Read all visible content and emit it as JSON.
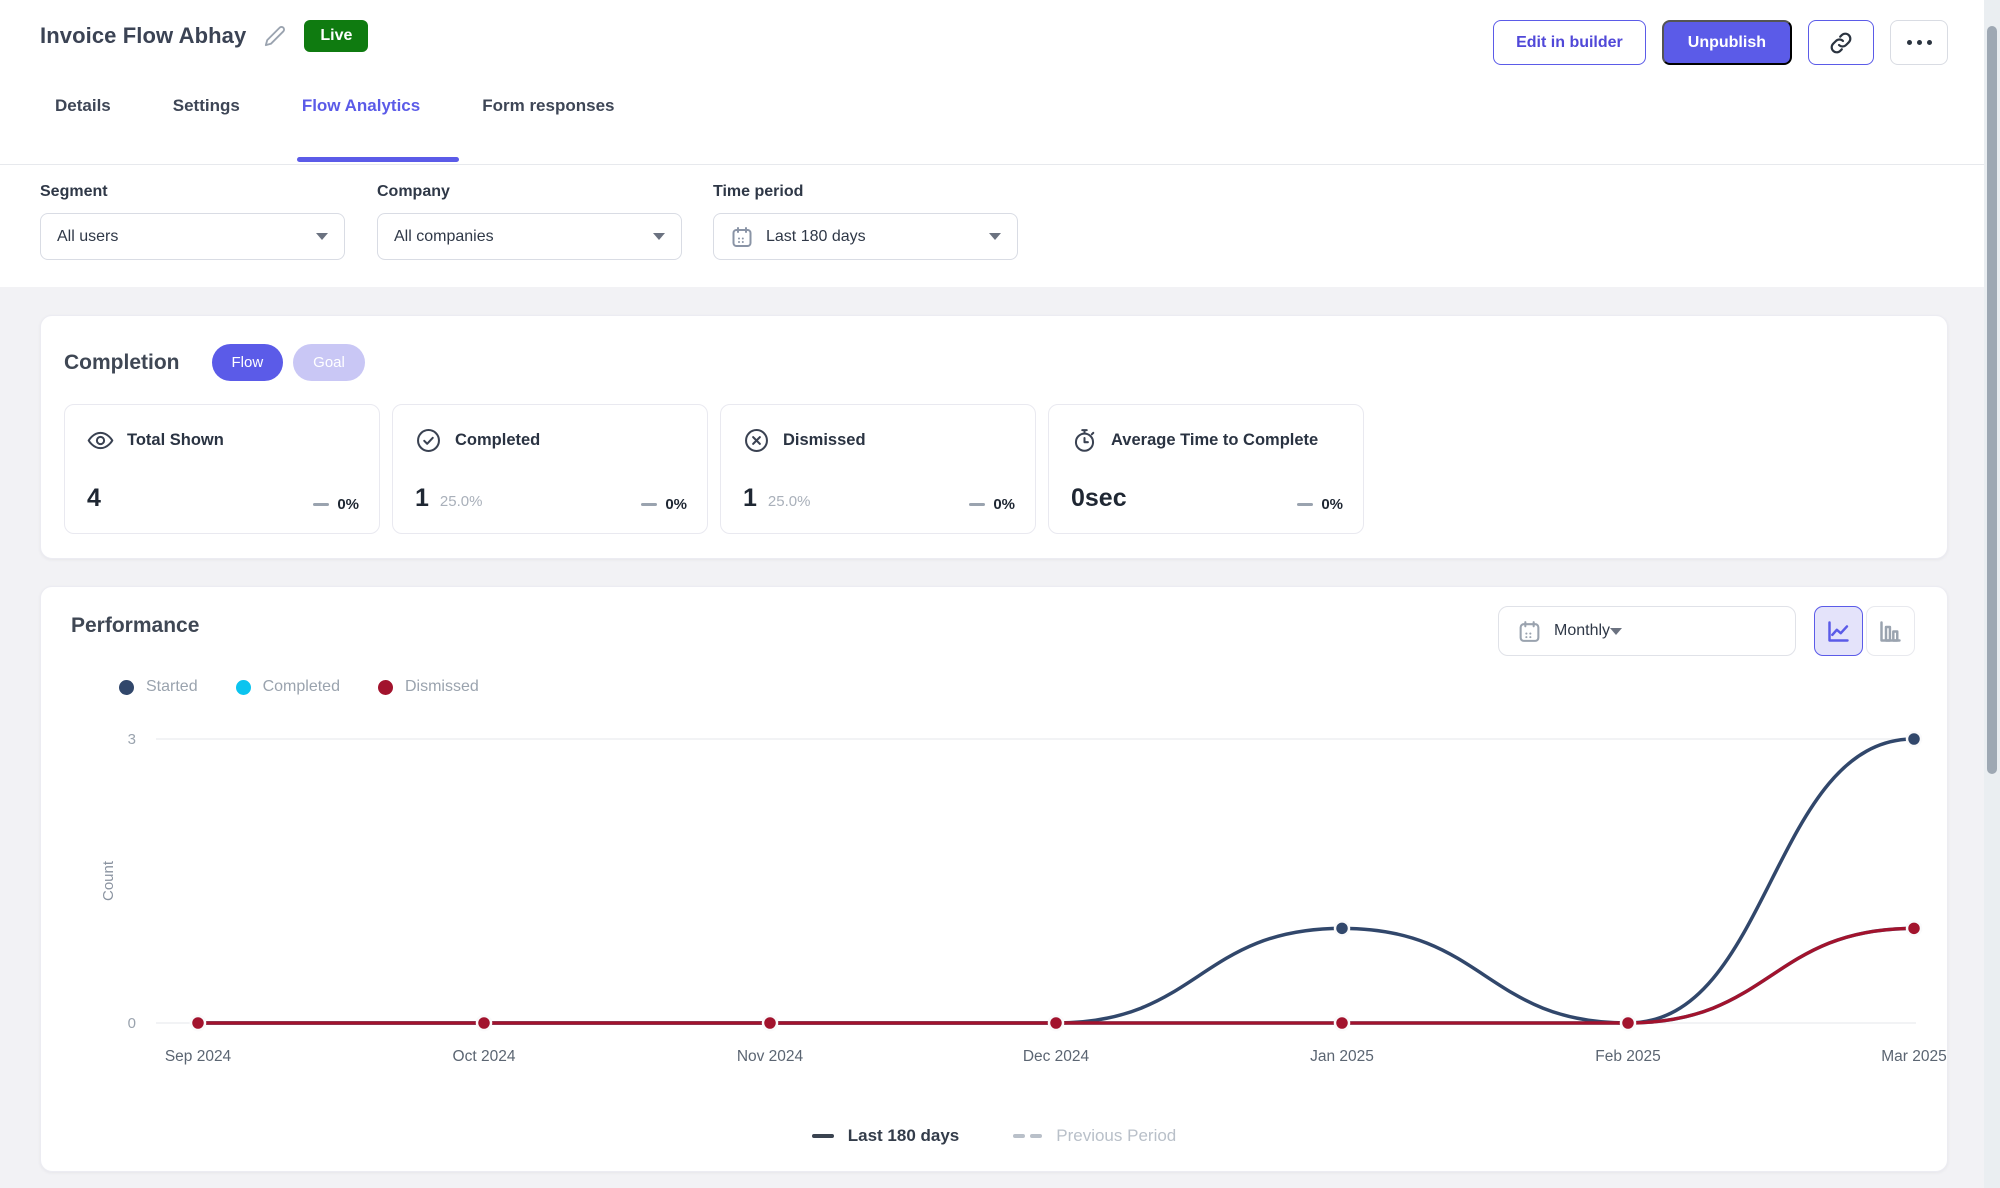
{
  "accent_color": "#5B5BE8",
  "header": {
    "title": "Invoice Flow Abhay",
    "status": "Live",
    "edit_button": "Edit in builder",
    "unpublish_button": "Unpublish"
  },
  "tabs": [
    {
      "label": "Details"
    },
    {
      "label": "Settings"
    },
    {
      "label": "Flow Analytics"
    },
    {
      "label": "Form responses"
    }
  ],
  "active_tab": "Flow Analytics",
  "filters": {
    "segment": {
      "label": "Segment",
      "value": "All users"
    },
    "company": {
      "label": "Company",
      "value": "All companies"
    },
    "time_period": {
      "label": "Time period",
      "value": "Last 180 days"
    }
  },
  "completion": {
    "title": "Completion",
    "toggle": {
      "options": [
        "Flow",
        "Goal"
      ],
      "active": "Flow"
    },
    "cards": [
      {
        "icon": "eye-icon",
        "label": "Total Shown",
        "value": "4",
        "sub": "",
        "delta": "0%"
      },
      {
        "icon": "check-circle-icon",
        "label": "Completed",
        "value": "1",
        "sub": "25.0%",
        "delta": "0%"
      },
      {
        "icon": "x-circle-icon",
        "label": "Dismissed",
        "value": "1",
        "sub": "25.0%",
        "delta": "0%"
      },
      {
        "icon": "stopwatch-icon",
        "label": "Average Time to Complete",
        "value": "0sec",
        "sub": "",
        "delta": "0%"
      }
    ]
  },
  "performance": {
    "title": "Performance",
    "interval": "Monthly",
    "period_legend": [
      {
        "label": "Last 180 days",
        "style": "solid"
      },
      {
        "label": "Previous Period",
        "style": "dashed"
      }
    ]
  },
  "chart_data": {
    "type": "line",
    "x": [
      "Sep 2024",
      "Oct 2024",
      "Nov 2024",
      "Dec 2024",
      "Jan 2025",
      "Feb 2025",
      "Mar 2025"
    ],
    "series": [
      {
        "name": "Completed",
        "color": "#0BC4EF",
        "values": [
          0,
          0,
          0,
          0,
          0,
          0,
          1
        ]
      },
      {
        "name": "Started",
        "color": "#31476B",
        "values": [
          0,
          0,
          0,
          0,
          1,
          0,
          3
        ]
      },
      {
        "name": "Dismissed",
        "color": "#A2132D",
        "values": [
          0,
          0,
          0,
          0,
          0,
          0,
          1
        ]
      }
    ],
    "legend_display_order": [
      "Started",
      "Completed",
      "Dismissed"
    ],
    "title": "Performance",
    "xlabel": "",
    "ylabel": "Count",
    "ylim": [
      0,
      3
    ],
    "yticks": [
      0,
      3
    ],
    "grid": "horizontal-ticks-only",
    "legend_position": "top-left"
  }
}
